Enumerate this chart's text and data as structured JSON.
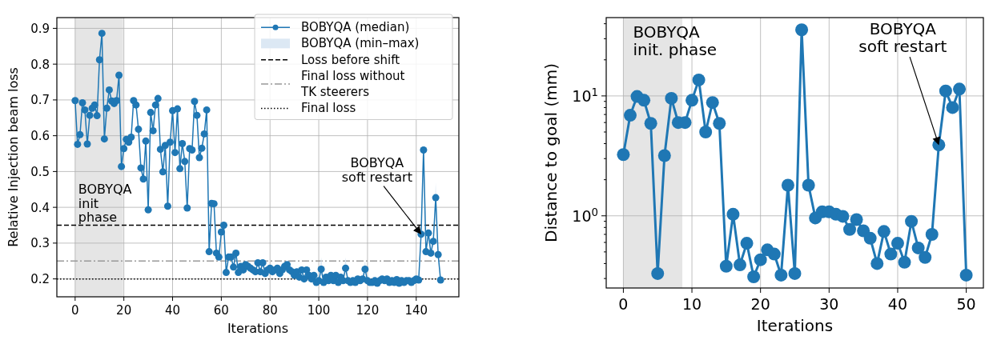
{
  "chart_data": [
    {
      "type": "line",
      "xlabel": "Iterations",
      "ylabel": "Relative Injection beam loss",
      "xlim": [
        -7.5,
        157.5
      ],
      "ylim": [
        0.15,
        0.93
      ],
      "xticks": [
        0,
        20,
        40,
        60,
        80,
        100,
        120,
        140
      ],
      "yticks": [
        0.2,
        0.3,
        0.4,
        0.5,
        0.6,
        0.7,
        0.8,
        0.9
      ],
      "grid": true,
      "legend": "top right",
      "x": [
        0,
        1,
        2,
        3,
        4,
        5,
        6,
        7,
        8,
        9,
        10,
        11,
        12,
        13,
        14,
        15,
        16,
        17,
        18,
        19,
        20,
        21,
        22,
        23,
        24,
        25,
        26,
        27,
        28,
        29,
        30,
        31,
        32,
        33,
        34,
        35,
        36,
        37,
        38,
        39,
        40,
        41,
        42,
        43,
        44,
        45,
        46,
        47,
        48,
        49,
        50,
        51,
        52,
        53,
        54,
        55,
        56,
        57,
        58,
        59,
        60,
        61,
        62,
        63,
        64,
        65,
        66,
        67,
        68,
        69,
        70,
        71,
        72,
        73,
        74,
        75,
        76,
        77,
        78,
        79,
        80,
        81,
        82,
        83,
        84,
        85,
        86,
        87,
        88,
        89,
        90,
        91,
        92,
        93,
        94,
        95,
        96,
        97,
        98,
        99,
        100,
        101,
        102,
        103,
        104,
        105,
        106,
        107,
        108,
        109,
        110,
        111,
        112,
        113,
        114,
        115,
        116,
        117,
        118,
        119,
        120,
        121,
        122,
        123,
        124,
        125,
        126,
        127,
        128,
        129,
        130,
        131,
        132,
        133,
        134,
        135,
        136,
        137,
        138,
        139,
        140,
        141,
        142,
        143,
        144,
        145,
        146,
        147,
        148,
        149,
        150
      ],
      "series": [
        {
          "name": "BOBYQA (min–max)",
          "type": "area",
          "color": "#dce8f4",
          "values": [
            0.708,
            0.586,
            0.613,
            0.702,
            0.682,
            0.587,
            0.667,
            0.687,
            0.696,
            0.666,
            0.822,
            0.896,
            0.601,
            0.687,
            0.738,
            0.707,
            0.7,
            0.708,
            0.779,
            0.524,
            0.574,
            0.6,
            0.592,
            0.606,
            0.708,
            0.696,
            0.628,
            0.52,
            0.489,
            0.595,
            0.403,
            0.675,
            0.624,
            0.696,
            0.714,
            0.572,
            0.509,
            0.583,
            0.413,
            0.592,
            0.68,
            0.563,
            0.685,
            0.518,
            0.588,
            0.538,
            0.408,
            0.574,
            0.57,
            0.706,
            0.667,
            0.549,
            0.575,
            0.615,
            0.682,
            0.286,
            0.421,
            0.42,
            0.282,
            0.271,
            0.341,
            0.36,
            0.228,
            0.271,
            0.271,
            0.243,
            0.282,
            0.228,
            0.245,
            0.235,
            0.25,
            0.245,
            0.24,
            0.235,
            0.23,
            0.255,
            0.23,
            0.255,
            0.225,
            0.235,
            0.24,
            0.23,
            0.235,
            0.24,
            0.225,
            0.235,
            0.245,
            0.25,
            0.235,
            0.23,
            0.22,
            0.23,
            0.215,
            0.235,
            0.21,
            0.235,
            0.22,
            0.21,
            0.22,
            0.2,
            0.205,
            0.26,
            0.2,
            0.215,
            0.205,
            0.22,
            0.205,
            0.22,
            0.2,
            0.215,
            0.205,
            0.26,
            0.205,
            0.2,
            0.205,
            0.2,
            0.21,
            0.205,
            0.21,
            0.25,
            0.205,
            0.2,
            0.2,
            0.205,
            0.198,
            0.205,
            0.21,
            0.205,
            0.21,
            0.2,
            0.205,
            0.2,
            0.208,
            0.198,
            0.205,
            0.2,
            0.205,
            0.205,
            0.2,
            0.205,
            0.21,
            0.207,
            0.335,
            0.57,
            0.286,
            0.338,
            0.282,
            0.315,
            0.47,
            0.278,
            0.207
          ]
        },
        {
          "name": "BOBYQA (median)",
          "marker": "circle",
          "color": "#1f77b4",
          "values": [
            0.698,
            0.576,
            0.603,
            0.692,
            0.672,
            0.577,
            0.657,
            0.677,
            0.686,
            0.656,
            0.812,
            0.886,
            0.591,
            0.677,
            0.728,
            0.697,
            0.69,
            0.698,
            0.769,
            0.514,
            0.564,
            0.59,
            0.582,
            0.596,
            0.698,
            0.686,
            0.618,
            0.51,
            0.479,
            0.585,
            0.393,
            0.665,
            0.614,
            0.686,
            0.704,
            0.562,
            0.499,
            0.573,
            0.403,
            0.582,
            0.67,
            0.553,
            0.675,
            0.508,
            0.578,
            0.528,
            0.398,
            0.564,
            0.56,
            0.696,
            0.657,
            0.539,
            0.565,
            0.605,
            0.672,
            0.276,
            0.411,
            0.41,
            0.272,
            0.261,
            0.331,
            0.35,
            0.218,
            0.261,
            0.261,
            0.233,
            0.272,
            0.218,
            0.235,
            0.225,
            0.24,
            0.235,
            0.23,
            0.225,
            0.22,
            0.245,
            0.22,
            0.245,
            0.215,
            0.225,
            0.23,
            0.22,
            0.225,
            0.23,
            0.215,
            0.225,
            0.235,
            0.24,
            0.225,
            0.22,
            0.21,
            0.22,
            0.205,
            0.225,
            0.2,
            0.225,
            0.21,
            0.2,
            0.21,
            0.19,
            0.195,
            0.227,
            0.19,
            0.205,
            0.195,
            0.21,
            0.195,
            0.21,
            0.19,
            0.205,
            0.195,
            0.23,
            0.195,
            0.19,
            0.195,
            0.19,
            0.2,
            0.195,
            0.2,
            0.227,
            0.195,
            0.19,
            0.19,
            0.195,
            0.188,
            0.195,
            0.2,
            0.195,
            0.2,
            0.19,
            0.195,
            0.19,
            0.198,
            0.188,
            0.195,
            0.19,
            0.195,
            0.195,
            0.19,
            0.195,
            0.2,
            0.197,
            0.325,
            0.56,
            0.276,
            0.328,
            0.272,
            0.305,
            0.427,
            0.268,
            0.197
          ]
        }
      ],
      "ref_lines": [
        {
          "axis": "y",
          "value": 0.35,
          "label": "Loss before shift",
          "color": "#000000",
          "line_style": "dashed"
        },
        {
          "axis": "y",
          "value": 0.25,
          "label": "Final loss without\nTK steerers",
          "color": "#999999",
          "line_style": "dashdot"
        },
        {
          "axis": "y",
          "value": 0.2,
          "label": "Final loss",
          "color": "#000000",
          "line_style": "dotted"
        }
      ],
      "bands": [
        {
          "axis": "x",
          "from": 0,
          "to": 19.7,
          "label": "BOBYQA\ninit\nphase",
          "color": "#e5e5e5"
        }
      ],
      "annotations": [
        {
          "text": "BOBYQA\nsoft restart",
          "x": 142,
          "y": 0.325
        }
      ]
    },
    {
      "type": "line",
      "xlabel": "Iterations",
      "ylabel": "Distance to goal (mm)",
      "log": "y",
      "xlim": [
        -2.5,
        52.5
      ],
      "ylim": [
        0.25,
        45
      ],
      "xticks": [
        0,
        10,
        20,
        30,
        40,
        50
      ],
      "yticks": [
        {
          "value": 0.3,
          "label": null
        },
        {
          "value": 0.4,
          "label": null
        },
        {
          "value": 0.5,
          "label": null
        },
        {
          "value": 0.6,
          "label": null
        },
        {
          "value": 0.7,
          "label": null
        },
        {
          "value": 0.8,
          "label": null
        },
        {
          "value": 0.9,
          "label": null
        },
        {
          "value": 1,
          "label": "10$^{0}$"
        },
        {
          "value": 2,
          "label": null
        },
        {
          "value": 3,
          "label": null
        },
        {
          "value": 4,
          "label": null
        },
        {
          "value": 5,
          "label": null
        },
        {
          "value": 6,
          "label": null
        },
        {
          "value": 7,
          "label": null
        },
        {
          "value": 8,
          "label": null
        },
        {
          "value": 9,
          "label": null
        },
        {
          "value": 10,
          "label": "10$^{1}$"
        },
        {
          "value": 20,
          "label": null
        },
        {
          "value": 30,
          "label": null
        },
        {
          "value": 40,
          "label": null
        }
      ],
      "grid": true,
      "marker": "circle",
      "x": [
        0,
        1,
        2,
        3,
        4,
        5,
        6,
        7,
        8,
        9,
        10,
        11,
        12,
        13,
        14,
        15,
        16,
        17,
        18,
        19,
        20,
        21,
        22,
        23,
        24,
        25,
        26,
        27,
        28,
        29,
        30,
        31,
        32,
        33,
        34,
        35,
        36,
        37,
        38,
        39,
        40,
        41,
        42,
        43,
        44,
        45,
        46,
        47,
        48,
        49,
        50
      ],
      "series": [
        {
          "color": "#1f77b4",
          "values": [
            3.24,
            6.9,
            9.9,
            9.2,
            5.9,
            0.33,
            3.18,
            9.55,
            6.0,
            6.0,
            9.2,
            13.6,
            5.0,
            8.8,
            5.9,
            0.38,
            1.03,
            0.39,
            0.59,
            0.31,
            0.43,
            0.52,
            0.48,
            0.32,
            1.8,
            0.33,
            35.6,
            1.8,
            0.96,
            1.08,
            1.08,
            1.03,
            0.99,
            0.77,
            0.93,
            0.75,
            0.65,
            0.4,
            0.74,
            0.48,
            0.59,
            0.41,
            0.9,
            0.54,
            0.45,
            0.7,
            3.9,
            11.0,
            8.0,
            11.4,
            0.32
          ]
        }
      ],
      "bands": [
        {
          "axis": "x",
          "from": 0,
          "to": 8.6,
          "label": "BOBYQA\ninit. phase",
          "color": "#e5e5e5"
        }
      ],
      "annotations": [
        {
          "text": "BOBYQA\nsoft restart",
          "x": 46,
          "y": 3.9
        }
      ]
    }
  ]
}
